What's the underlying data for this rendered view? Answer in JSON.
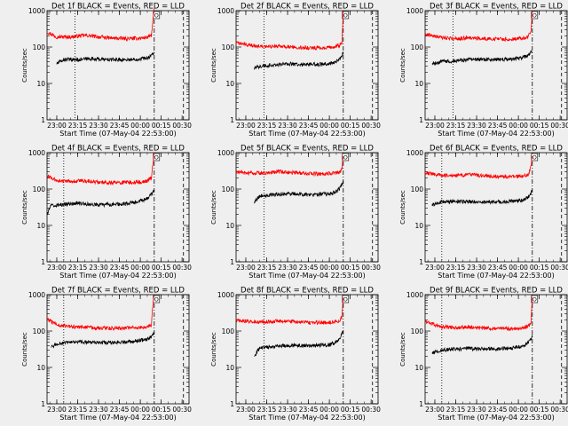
{
  "figure": {
    "background": "#efefef",
    "axis_color": "#000000"
  },
  "chart_data": [
    {
      "type": "line",
      "title": "Det 1f BLACK = Events, RED = LLD",
      "xlabel": "Start Time (07-May-04 22:53:00)",
      "ylabel": "Counts/sec",
      "y_scale": "log",
      "ylim": [
        1,
        1000
      ],
      "xlim": [
        "22:53",
        "00:35"
      ],
      "x_ticks": [
        "23:00",
        "23:15",
        "23:30",
        "23:45",
        "00:00",
        "00:15",
        "00:30"
      ],
      "y_ticks": [
        "1",
        "10",
        "100",
        "1000"
      ],
      "corner_label": "O",
      "markers": {
        "dotted": "23:13",
        "dash_dot": "00:10",
        "dashed": "00:31"
      },
      "series": [
        {
          "color": "#ff0000",
          "x": [
            "22:53",
            "23:00",
            "23:10",
            "23:20",
            "23:30",
            "23:40",
            "23:50",
            "00:00",
            "00:05",
            "00:08",
            "00:09",
            "00:10"
          ],
          "values": [
            260,
            190,
            190,
            210,
            190,
            175,
            170,
            175,
            185,
            210,
            500,
            1100
          ]
        },
        {
          "color": "#000000",
          "x": [
            "23:00",
            "23:05",
            "23:15",
            "23:25",
            "23:35",
            "23:45",
            "23:55",
            "00:00",
            "00:05",
            "00:08",
            "00:10"
          ],
          "values": [
            35,
            45,
            45,
            48,
            45,
            45,
            45,
            48,
            50,
            60,
            70
          ]
        }
      ]
    },
    {
      "type": "line",
      "title": "Det 2f BLACK = Events, RED = LLD",
      "xlabel": "Start Time (07-May-04 22:53:00)",
      "ylabel": "Counts/sec",
      "y_scale": "log",
      "ylim": [
        1,
        1000
      ],
      "xlim": [
        "22:53",
        "00:35"
      ],
      "x_ticks": [
        "23:00",
        "23:15",
        "23:30",
        "23:45",
        "00:00",
        "00:15",
        "00:30"
      ],
      "y_ticks": [
        "1",
        "10",
        "100",
        "1000"
      ],
      "corner_label": "O",
      "markers": {
        "dotted": "23:13",
        "dash_dot": "00:10",
        "dashed": "00:31"
      },
      "series": [
        {
          "color": "#ff0000",
          "x": [
            "22:53",
            "23:05",
            "23:15",
            "23:25",
            "23:35",
            "23:45",
            "23:55",
            "00:03",
            "00:07",
            "00:09",
            "00:10"
          ],
          "values": [
            130,
            110,
            100,
            105,
            100,
            95,
            95,
            100,
            110,
            130,
            900
          ]
        },
        {
          "color": "#000000",
          "x": [
            "23:06",
            "23:10",
            "23:20",
            "23:30",
            "23:40",
            "23:50",
            "00:00",
            "00:05",
            "00:08",
            "00:10"
          ],
          "values": [
            25,
            30,
            32,
            35,
            33,
            33,
            35,
            40,
            50,
            70
          ]
        }
      ]
    },
    {
      "type": "line",
      "title": "Det 3f BLACK = Events, RED = LLD",
      "xlabel": "Start Time (07-May-04 22:53:00)",
      "ylabel": "Counts/sec",
      "y_scale": "log",
      "ylim": [
        1,
        1000
      ],
      "xlim": [
        "22:53",
        "00:35"
      ],
      "x_ticks": [
        "23:00",
        "23:15",
        "23:30",
        "23:45",
        "00:00",
        "00:15",
        "00:30"
      ],
      "y_ticks": [
        "1",
        "10",
        "100",
        "1000"
      ],
      "corner_label": "O",
      "markers": {
        "dotted": "23:13",
        "dash_dot": "00:10",
        "dashed": "00:31"
      },
      "series": [
        {
          "color": "#ff0000",
          "x": [
            "22:53",
            "23:05",
            "23:15",
            "23:25",
            "23:35",
            "23:45",
            "23:55",
            "00:03",
            "00:07",
            "00:09",
            "00:10"
          ],
          "values": [
            230,
            180,
            170,
            180,
            170,
            165,
            165,
            175,
            190,
            260,
            900
          ]
        },
        {
          "color": "#000000",
          "x": [
            "22:58",
            "23:05",
            "23:15",
            "23:25",
            "23:35",
            "23:45",
            "23:55",
            "00:03",
            "00:07",
            "00:10"
          ],
          "values": [
            35,
            40,
            42,
            45,
            45,
            45,
            47,
            50,
            60,
            80
          ]
        }
      ]
    },
    {
      "type": "line",
      "title": "Det 4f BLACK = Events, RED = LLD",
      "xlabel": "Start Time (07-May-04 22:53:00)",
      "ylabel": "Counts/sec",
      "y_scale": "log",
      "ylim": [
        1,
        1000
      ],
      "xlim": [
        "22:53",
        "00:35"
      ],
      "x_ticks": [
        "23:00",
        "23:15",
        "23:30",
        "23:45",
        "00:00",
        "00:15",
        "00:30"
      ],
      "y_ticks": [
        "1",
        "10",
        "100",
        "1000"
      ],
      "corner_label": "O",
      "markers": {
        "dotted": "23:05",
        "dash_dot": "00:10",
        "dashed": "00:31"
      },
      "series": [
        {
          "color": "#ff0000",
          "x": [
            "22:53",
            "23:00",
            "23:10",
            "23:20",
            "23:30",
            "23:40",
            "23:50",
            "00:00",
            "00:05",
            "00:08",
            "00:09",
            "00:10"
          ],
          "values": [
            230,
            170,
            160,
            170,
            155,
            150,
            150,
            155,
            170,
            210,
            500,
            900
          ]
        },
        {
          "color": "#000000",
          "x": [
            "22:53",
            "22:56",
            "23:05",
            "23:15",
            "23:25",
            "23:35",
            "23:45",
            "23:55",
            "00:03",
            "00:07",
            "00:10"
          ],
          "values": [
            20,
            35,
            38,
            40,
            38,
            37,
            38,
            42,
            50,
            65,
            90
          ]
        }
      ]
    },
    {
      "type": "line",
      "title": "Det 5f BLACK = Events, RED = LLD",
      "xlabel": "Start Time (07-May-04 22:53:00)",
      "ylabel": "Counts/sec",
      "y_scale": "log",
      "ylim": [
        1,
        1000
      ],
      "xlim": [
        "22:53",
        "00:35"
      ],
      "x_ticks": [
        "23:00",
        "23:15",
        "23:30",
        "23:45",
        "00:00",
        "00:15",
        "00:30"
      ],
      "y_ticks": [
        "1",
        "10",
        "100",
        "1000"
      ],
      "corner_label": "O",
      "markers": {
        "dotted": "23:13",
        "dash_dot": "00:10",
        "dashed": "00:31"
      },
      "series": [
        {
          "color": "#ff0000",
          "x": [
            "22:53",
            "23:05",
            "23:15",
            "23:25",
            "23:35",
            "23:45",
            "23:55",
            "00:03",
            "00:07",
            "00:09",
            "00:10"
          ],
          "values": [
            290,
            270,
            280,
            300,
            280,
            270,
            260,
            270,
            290,
            350,
            900
          ]
        },
        {
          "color": "#000000",
          "x": [
            "23:06",
            "23:10",
            "23:20",
            "23:30",
            "23:40",
            "23:50",
            "00:00",
            "00:05",
            "00:08",
            "00:10"
          ],
          "values": [
            45,
            65,
            70,
            75,
            72,
            70,
            75,
            85,
            110,
            160
          ]
        }
      ]
    },
    {
      "type": "line",
      "title": "Det 6f BLACK = Events, RED = LLD",
      "xlabel": "Start Time (07-May-04 22:53:00)",
      "ylabel": "Counts/sec",
      "y_scale": "log",
      "ylim": [
        1,
        1000
      ],
      "xlim": [
        "22:53",
        "00:35"
      ],
      "x_ticks": [
        "23:00",
        "23:15",
        "23:30",
        "23:45",
        "00:00",
        "00:15",
        "00:30"
      ],
      "y_ticks": [
        "1",
        "10",
        "100",
        "1000"
      ],
      "corner_label": "O",
      "markers": {
        "dotted": "23:05",
        "dash_dot": "00:10",
        "dashed": "00:31"
      },
      "series": [
        {
          "color": "#ff0000",
          "x": [
            "22:53",
            "23:05",
            "23:15",
            "23:25",
            "23:35",
            "23:45",
            "23:55",
            "00:03",
            "00:07",
            "00:09",
            "00:10"
          ],
          "values": [
            280,
            240,
            230,
            250,
            230,
            220,
            215,
            225,
            250,
            400,
            900
          ]
        },
        {
          "color": "#000000",
          "x": [
            "22:58",
            "23:05",
            "23:15",
            "23:25",
            "23:35",
            "23:45",
            "23:55",
            "00:03",
            "00:07",
            "00:10"
          ],
          "values": [
            35,
            45,
            45,
            45,
            44,
            44,
            46,
            50,
            60,
            90
          ]
        }
      ]
    },
    {
      "type": "line",
      "title": "Det 7f BLACK = Events, RED = LLD",
      "xlabel": "Start Time (07-May-04 22:53:00)",
      "ylabel": "Counts/sec",
      "y_scale": "log",
      "ylim": [
        1,
        1000
      ],
      "xlim": [
        "22:53",
        "00:35"
      ],
      "x_ticks": [
        "23:00",
        "23:15",
        "23:30",
        "23:45",
        "00:00",
        "00:15",
        "00:30"
      ],
      "y_ticks": [
        "1",
        "10",
        "100",
        "1000"
      ],
      "corner_label": "O",
      "markers": {
        "dotted": "23:05",
        "dash_dot": "00:10",
        "dashed": "00:31"
      },
      "series": [
        {
          "color": "#ff0000",
          "x": [
            "22:53",
            "23:00",
            "23:10",
            "23:20",
            "23:30",
            "23:40",
            "23:50",
            "00:00",
            "00:05",
            "00:08",
            "00:09",
            "00:10"
          ],
          "values": [
            210,
            150,
            130,
            130,
            120,
            120,
            120,
            125,
            130,
            150,
            500,
            1000
          ]
        },
        {
          "color": "#000000",
          "x": [
            "22:56",
            "23:00",
            "23:10",
            "23:20",
            "23:30",
            "23:40",
            "23:50",
            "00:00",
            "00:05",
            "00:08",
            "00:10"
          ],
          "values": [
            35,
            45,
            48,
            50,
            48,
            48,
            50,
            55,
            60,
            70,
            90
          ]
        }
      ]
    },
    {
      "type": "line",
      "title": "Det 8f BLACK = Events, RED = LLD",
      "xlabel": "Start Time (07-May-04 22:53:00)",
      "ylabel": "Counts/sec",
      "y_scale": "log",
      "ylim": [
        1,
        1000
      ],
      "xlim": [
        "22:53",
        "00:35"
      ],
      "x_ticks": [
        "23:00",
        "23:15",
        "23:30",
        "23:45",
        "00:00",
        "00:15",
        "00:30"
      ],
      "y_ticks": [
        "1",
        "10",
        "100",
        "1000"
      ],
      "corner_label": "O",
      "markers": {
        "dotted": "23:13",
        "dash_dot": "00:10",
        "dashed": "00:31"
      },
      "series": [
        {
          "color": "#ff0000",
          "x": [
            "22:53",
            "23:05",
            "23:15",
            "23:25",
            "23:35",
            "23:45",
            "23:55",
            "00:03",
            "00:07",
            "00:09",
            "00:10"
          ],
          "values": [
            200,
            180,
            180,
            190,
            180,
            170,
            170,
            175,
            190,
            240,
            900
          ]
        },
        {
          "color": "#000000",
          "x": [
            "23:06",
            "23:10",
            "23:20",
            "23:30",
            "23:40",
            "23:50",
            "00:00",
            "00:05",
            "00:08",
            "00:10"
          ],
          "values": [
            20,
            35,
            38,
            40,
            40,
            40,
            42,
            50,
            70,
            100
          ]
        }
      ]
    },
    {
      "type": "line",
      "title": "Det 9f BLACK = Events, RED = LLD",
      "xlabel": "Start Time (07-May-04 22:53:00)",
      "ylabel": "Counts/sec",
      "y_scale": "log",
      "ylim": [
        1,
        1000
      ],
      "xlim": [
        "22:53",
        "00:35"
      ],
      "x_ticks": [
        "23:00",
        "23:15",
        "23:30",
        "23:45",
        "00:00",
        "00:15",
        "00:30"
      ],
      "y_ticks": [
        "1",
        "10",
        "100",
        "1000"
      ],
      "corner_label": "O",
      "markers": {
        "dotted": "23:05",
        "dash_dot": "00:10",
        "dashed": "00:31"
      },
      "series": [
        {
          "color": "#ff0000",
          "x": [
            "22:53",
            "23:05",
            "23:15",
            "23:25",
            "23:35",
            "23:45",
            "23:55",
            "00:03",
            "00:07",
            "00:09",
            "00:10"
          ],
          "values": [
            180,
            130,
            125,
            130,
            120,
            115,
            115,
            120,
            135,
            180,
            900
          ]
        },
        {
          "color": "#000000",
          "x": [
            "22:58",
            "23:05",
            "23:15",
            "23:25",
            "23:35",
            "23:45",
            "23:55",
            "00:03",
            "00:07",
            "00:10"
          ],
          "values": [
            25,
            30,
            32,
            33,
            32,
            32,
            34,
            38,
            48,
            70
          ]
        }
      ]
    }
  ]
}
